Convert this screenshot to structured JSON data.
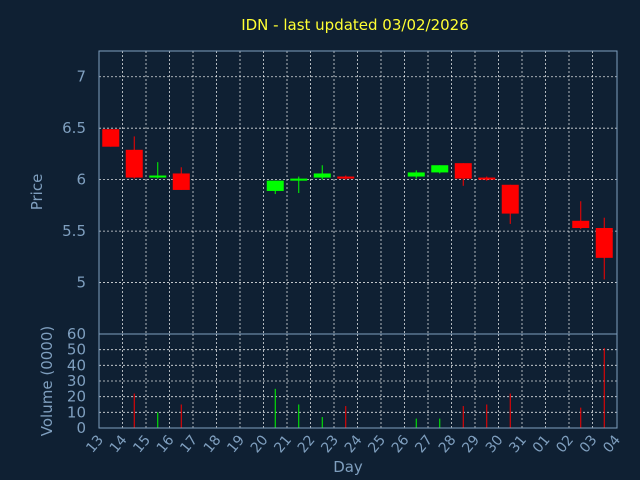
{
  "chart_data": {
    "type": "candlestick",
    "title": "IDN - last updated 03/02/2026",
    "xlabel": "Day",
    "days": [
      "13",
      "14",
      "15",
      "16",
      "17",
      "18",
      "19",
      "20",
      "21",
      "22",
      "23",
      "24",
      "25",
      "26",
      "27",
      "28",
      "29",
      "30",
      "31",
      "01",
      "02",
      "03",
      "04"
    ],
    "price": {
      "ylabel": "Price",
      "ylim": [
        4.5,
        7.25
      ],
      "yticks": [
        5,
        5.5,
        6,
        6.5,
        7
      ],
      "ytick_labels": [
        "5",
        "5.5",
        "6",
        "6.5",
        "7"
      ],
      "candles": [
        {
          "day": "13",
          "open": 6.49,
          "high": 6.49,
          "low": 6.32,
          "close": 6.32
        },
        {
          "day": "14",
          "open": 6.29,
          "high": 6.42,
          "low": 6.01,
          "close": 6.02
        },
        {
          "day": "15",
          "open": 6.02,
          "high": 6.17,
          "low": 6.01,
          "close": 6.04
        },
        {
          "day": "16",
          "open": 6.06,
          "high": 6.12,
          "low": 5.9,
          "close": 5.9
        },
        {
          "day": "20",
          "open": 5.89,
          "high": 5.99,
          "low": 5.86,
          "close": 5.99
        },
        {
          "day": "21",
          "open": 5.99,
          "high": 6.03,
          "low": 5.87,
          "close": 6.01
        },
        {
          "day": "22",
          "open": 6.02,
          "high": 6.14,
          "low": 6.0,
          "close": 6.06
        },
        {
          "day": "23",
          "open": 6.03,
          "high": 6.04,
          "low": 6.0,
          "close": 6.01
        },
        {
          "day": "26",
          "open": 6.03,
          "high": 6.09,
          "low": 6.01,
          "close": 6.07
        },
        {
          "day": "27",
          "open": 6.07,
          "high": 6.14,
          "low": 6.06,
          "close": 6.14
        },
        {
          "day": "28",
          "open": 6.16,
          "high": 6.16,
          "low": 5.94,
          "close": 6.01
        },
        {
          "day": "29",
          "open": 6.02,
          "high": 6.03,
          "low": 5.99,
          "close": 6.0
        },
        {
          "day": "30",
          "open": 5.95,
          "high": 5.95,
          "low": 5.57,
          "close": 5.67
        },
        {
          "day": "02",
          "open": 5.6,
          "high": 5.79,
          "low": 5.52,
          "close": 5.53
        },
        {
          "day": "03",
          "open": 5.53,
          "high": 5.63,
          "low": 5.03,
          "close": 5.24
        }
      ]
    },
    "volume": {
      "ylabel": "Volume (0000)",
      "ylim": [
        0,
        60
      ],
      "yticks": [
        0,
        10,
        20,
        30,
        40,
        50,
        60
      ],
      "ytick_labels": [
        "0",
        "10",
        "20",
        "30",
        "40",
        "50",
        "60"
      ],
      "bars": [
        {
          "day": "14",
          "value": 22,
          "dir": "down"
        },
        {
          "day": "15",
          "value": 10,
          "dir": "up"
        },
        {
          "day": "16",
          "value": 15,
          "dir": "down"
        },
        {
          "day": "20",
          "value": 25,
          "dir": "up"
        },
        {
          "day": "21",
          "value": 15,
          "dir": "up"
        },
        {
          "day": "22",
          "value": 7,
          "dir": "up"
        },
        {
          "day": "23",
          "value": 14,
          "dir": "down"
        },
        {
          "day": "26",
          "value": 6,
          "dir": "up"
        },
        {
          "day": "27",
          "value": 6,
          "dir": "up"
        },
        {
          "day": "28",
          "value": 14,
          "dir": "down"
        },
        {
          "day": "29",
          "value": 15,
          "dir": "down"
        },
        {
          "day": "30",
          "value": 22,
          "dir": "down"
        },
        {
          "day": "02",
          "value": 13,
          "dir": "down"
        },
        {
          "day": "03",
          "value": 51,
          "dir": "down"
        }
      ]
    },
    "grid": true,
    "colors": {
      "background": "#0f2033",
      "up": "#00ff00",
      "down": "#ff0000",
      "title": "#ffff33",
      "axis_text": "#7f9fbf",
      "grid": "#ffffff"
    }
  }
}
